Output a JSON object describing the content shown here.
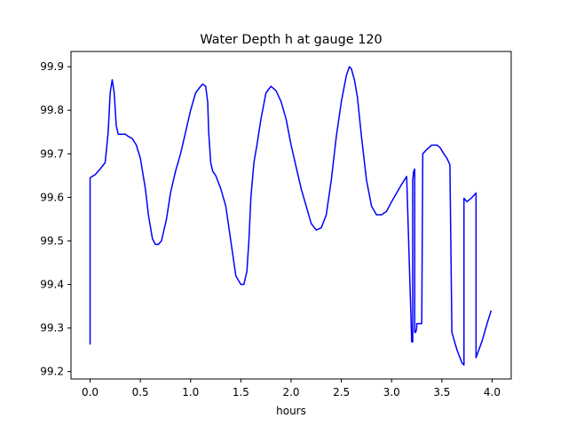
{
  "chart_data": {
    "type": "line",
    "title": "Water Depth h at gauge 120",
    "xlabel": "hours",
    "ylabel": "",
    "xlim": [
      -0.19,
      4.19
    ],
    "ylim": [
      99.183,
      99.935
    ],
    "x_ticks": [
      0.0,
      0.5,
      1.0,
      1.5,
      2.0,
      2.5,
      3.0,
      3.5,
      4.0
    ],
    "x_tick_labels": [
      "0.0",
      "0.5",
      "1.0",
      "1.5",
      "2.0",
      "2.5",
      "3.0",
      "3.5",
      "4.0"
    ],
    "y_ticks": [
      99.2,
      99.3,
      99.4,
      99.5,
      99.6,
      99.7,
      99.8,
      99.9
    ],
    "y_tick_labels": [
      "99.2",
      "99.3",
      "99.4",
      "99.5",
      "99.6",
      "99.7",
      "99.8",
      "99.9"
    ],
    "grid": false,
    "legend": "none",
    "series": [
      {
        "color": "#0000ff",
        "x": [
          0.0,
          0.0,
          0.02,
          0.05,
          0.1,
          0.15,
          0.18,
          0.2,
          0.22,
          0.24,
          0.26,
          0.28,
          0.3,
          0.32,
          0.35,
          0.38,
          0.42,
          0.46,
          0.5,
          0.55,
          0.58,
          0.62,
          0.65,
          0.68,
          0.71,
          0.73,
          0.76,
          0.8,
          0.85,
          0.9,
          0.95,
          1.0,
          1.05,
          1.1,
          1.12,
          1.15,
          1.17,
          1.18,
          1.2,
          1.22,
          1.25,
          1.3,
          1.35,
          1.4,
          1.45,
          1.5,
          1.53,
          1.56,
          1.58,
          1.6,
          1.63,
          1.66,
          1.7,
          1.75,
          1.8,
          1.85,
          1.9,
          1.95,
          2.0,
          2.05,
          2.1,
          2.15,
          2.2,
          2.25,
          2.3,
          2.35,
          2.4,
          2.45,
          2.5,
          2.55,
          2.58,
          2.6,
          2.63,
          2.66,
          2.7,
          2.75,
          2.8,
          2.85,
          2.9,
          2.95,
          3.0,
          3.05,
          3.1,
          3.15,
          3.2,
          3.21,
          3.21,
          3.22,
          3.23,
          3.23,
          3.24,
          3.25,
          3.25,
          3.3,
          3.31,
          3.31,
          3.35,
          3.4,
          3.45,
          3.48,
          3.52,
          3.55,
          3.58,
          3.6,
          3.6,
          3.65,
          3.7,
          3.72,
          3.72,
          3.75,
          3.8,
          3.84,
          3.84,
          3.9,
          3.95,
          3.99
        ],
        "y": [
          99.262,
          99.645,
          99.648,
          99.652,
          99.665,
          99.68,
          99.75,
          99.84,
          99.87,
          99.84,
          99.765,
          99.745,
          99.745,
          99.745,
          99.745,
          99.74,
          99.735,
          99.72,
          99.69,
          99.62,
          99.56,
          99.505,
          99.492,
          99.492,
          99.5,
          99.52,
          99.55,
          99.61,
          99.66,
          99.7,
          99.75,
          99.8,
          99.84,
          99.855,
          99.86,
          99.855,
          99.82,
          99.75,
          99.68,
          99.66,
          99.65,
          99.62,
          99.58,
          99.5,
          99.42,
          99.4,
          99.4,
          99.43,
          99.5,
          99.6,
          99.68,
          99.72,
          99.78,
          99.84,
          99.855,
          99.845,
          99.82,
          99.78,
          99.72,
          99.67,
          99.62,
          99.58,
          99.54,
          99.525,
          99.53,
          99.56,
          99.64,
          99.74,
          99.82,
          99.88,
          99.9,
          99.895,
          99.87,
          99.83,
          99.74,
          99.64,
          99.58,
          99.56,
          99.56,
          99.568,
          99.59,
          99.61,
          99.63,
          99.648,
          99.268,
          99.268,
          99.64,
          99.66,
          99.665,
          99.29,
          99.29,
          99.3,
          99.31,
          99.31,
          99.695,
          99.7,
          99.71,
          99.72,
          99.72,
          99.715,
          99.7,
          99.69,
          99.675,
          99.29,
          99.29,
          99.25,
          99.22,
          99.215,
          99.598,
          99.59,
          99.6,
          99.61,
          99.232,
          99.27,
          99.31,
          99.34
        ]
      }
    ]
  }
}
